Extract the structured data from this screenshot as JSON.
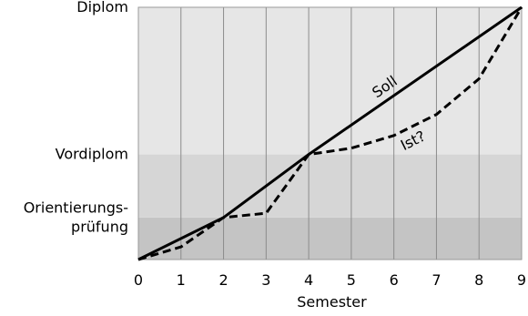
{
  "chart_data": {
    "type": "line",
    "xlabel": "Semester",
    "x_ticks": [
      "0",
      "1",
      "2",
      "3",
      "4",
      "5",
      "6",
      "7",
      "8",
      "9"
    ],
    "xlim": [
      0,
      9
    ],
    "y_levels": [
      {
        "key": "orientierung",
        "label_lines": [
          "Orientierungs-",
          "prüfung"
        ],
        "value": 1
      },
      {
        "key": "vordiplom",
        "label_lines": [
          "Vordiplom"
        ],
        "value": 2.5
      },
      {
        "key": "diplom",
        "label_lines": [
          "Diplom"
        ],
        "value": 6
      }
    ],
    "ylim": [
      0,
      6
    ],
    "bands": [
      {
        "from": 0,
        "to": 1,
        "color": "#c4c4c4"
      },
      {
        "from": 1,
        "to": 2.5,
        "color": "#d6d6d6"
      },
      {
        "from": 2.5,
        "to": 6,
        "color": "#e6e6e6"
      }
    ],
    "vertical_grid": true,
    "series": [
      {
        "name": "Soll",
        "style": "solid",
        "color": "#000000",
        "points": [
          [
            0,
            0
          ],
          [
            2,
            1
          ],
          [
            4,
            2.5
          ],
          [
            9,
            6
          ]
        ]
      },
      {
        "name": "Ist?",
        "style": "dashed",
        "color": "#000000",
        "points": [
          [
            0,
            0
          ],
          [
            1,
            0.3
          ],
          [
            2,
            1
          ],
          [
            3,
            1.1
          ],
          [
            4,
            2.5
          ],
          [
            5,
            2.65
          ],
          [
            6,
            2.95
          ],
          [
            7,
            3.45
          ],
          [
            8,
            4.3
          ],
          [
            9,
            6
          ]
        ]
      }
    ],
    "annotations": [
      {
        "text": "Soll",
        "series": "Soll"
      },
      {
        "text": "Ist?",
        "series": "Ist?"
      }
    ]
  }
}
